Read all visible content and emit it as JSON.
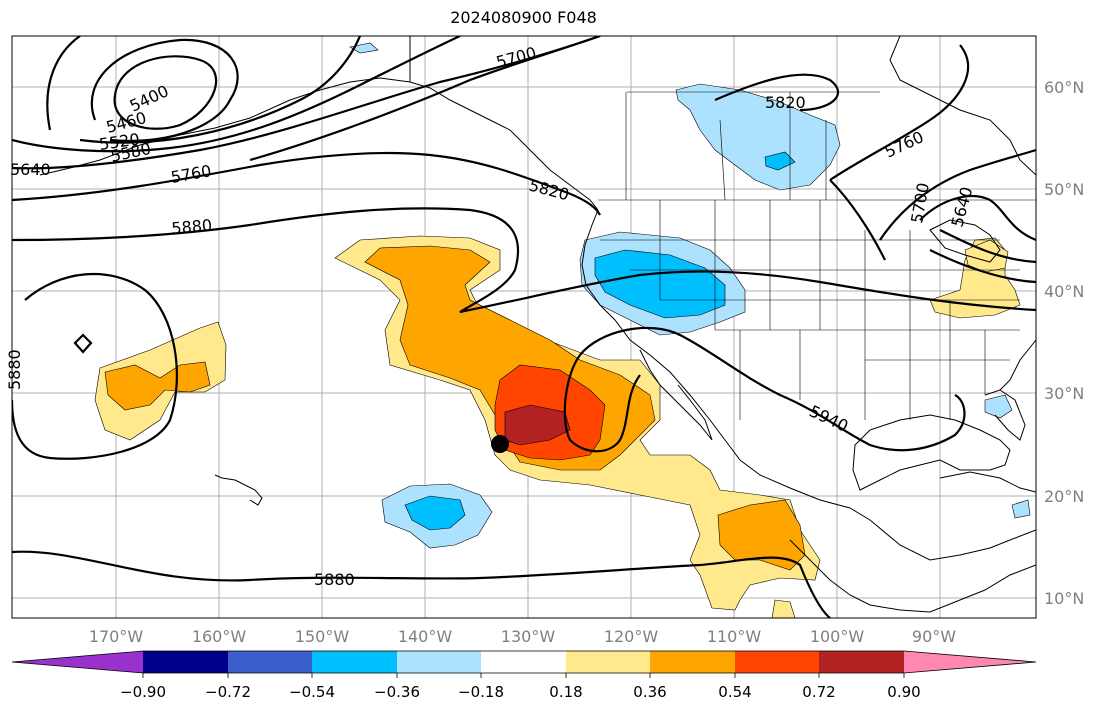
{
  "title": "2024080900 F048",
  "lon_labels": [
    "170°W",
    "160°W",
    "150°W",
    "140°W",
    "130°W",
    "120°W",
    "110°W",
    "100°W",
    "90°W"
  ],
  "lat_labels": [
    "60°N",
    "50°N",
    "40°N",
    "30°N",
    "20°N",
    "10°N"
  ],
  "contour_labels": {
    "c5700": "5700",
    "c5820_top": "5820",
    "c5400": "5400",
    "c5460": "5460",
    "c5520": "5520",
    "c5580": "5580",
    "c5640_left": "5640",
    "c5760_left": "5760",
    "c5820_coast": "5820",
    "c5880_upper": "5880",
    "c5880_left": "5880",
    "c5760_right": "5760",
    "c5700_right": "5700",
    "c5640_right": "5640",
    "c5940": "5940",
    "c5880_lower": "5880"
  },
  "colorbar": {
    "ticks": [
      "−0.90",
      "−0.72",
      "−0.54",
      "−0.36",
      "−0.18",
      "0.18",
      "0.36",
      "0.54",
      "0.72",
      "0.90"
    ],
    "colors": {
      "under": "#9932cc",
      "c1": "#00008b",
      "c2": "#3a5fcd",
      "c3": "#00bfff",
      "c4": "#ade2ff",
      "c5": "#ffffff",
      "c6": "#ffe98c",
      "c7": "#ffa500",
      "c8": "#ff4500",
      "c9": "#b22222",
      "over": "#ff88b0"
    }
  },
  "marker": "storm-center-dot"
}
